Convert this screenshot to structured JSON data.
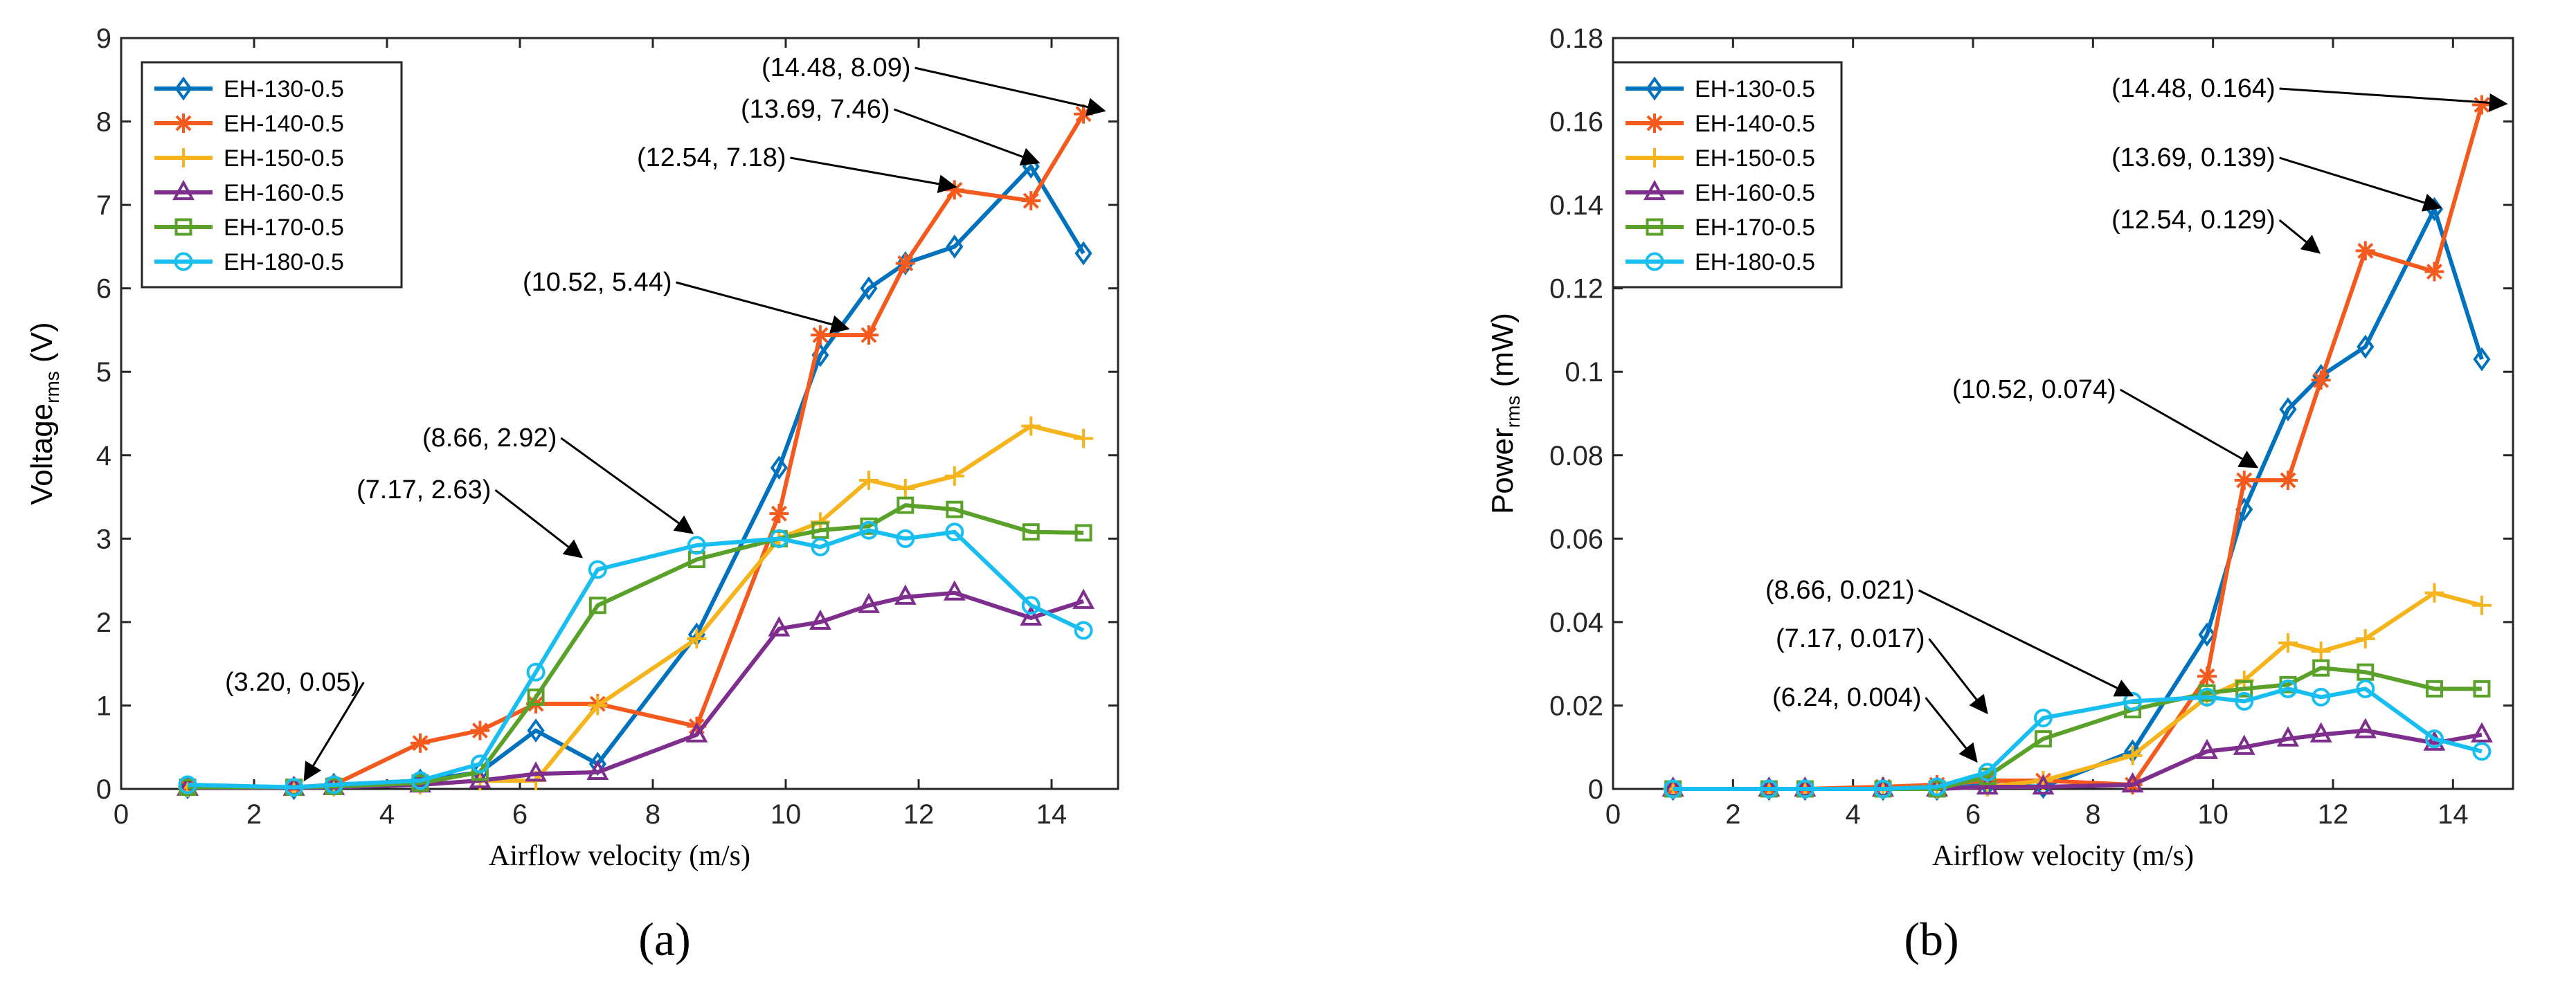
{
  "chart_data": [
    {
      "type": "line",
      "panel_label": "(a)",
      "xlabel": "Airflow velocity (m/s)",
      "ylabel_main": "Voltage",
      "ylabel_sub": "rms",
      "ylabel_unit": " (V)",
      "xlim": [
        0,
        15
      ],
      "ylim": [
        0,
        9
      ],
      "xticks": [
        0,
        2,
        4,
        6,
        8,
        10,
        12,
        14
      ],
      "yticks": [
        0,
        1,
        2,
        3,
        4,
        5,
        6,
        7,
        8,
        9
      ],
      "xtick_labels": [
        "0",
        "2",
        "4",
        "6",
        "8",
        "10",
        "12",
        "14"
      ],
      "ytick_labels": [
        "0",
        "1",
        "2",
        "3",
        "4",
        "5",
        "6",
        "7",
        "8",
        "9"
      ],
      "legend_position": "top-left",
      "grid": false,
      "x": [
        1.0,
        2.6,
        3.2,
        4.5,
        5.4,
        6.24,
        7.17,
        8.66,
        9.9,
        10.52,
        11.25,
        11.8,
        12.54,
        13.69,
        14.48
      ],
      "series": [
        {
          "name": "EH-130-0.5",
          "values": [
            0.02,
            0.01,
            0.05,
            0.1,
            0.2,
            0.7,
            0.3,
            1.85,
            3.85,
            5.2,
            6.0,
            6.3,
            6.5,
            7.46,
            6.42
          ]
        },
        {
          "name": "EH-140-0.5",
          "values": [
            0.02,
            0.02,
            0.05,
            0.55,
            0.7,
            1.02,
            1.02,
            0.75,
            3.3,
            5.44,
            5.44,
            6.3,
            7.18,
            7.05,
            8.09
          ]
        },
        {
          "name": "EH-150-0.5",
          "values": [
            0.02,
            0.02,
            0.03,
            0.05,
            0.1,
            0.1,
            1.0,
            1.8,
            3.0,
            3.2,
            3.7,
            3.6,
            3.75,
            4.35,
            4.2
          ]
        },
        {
          "name": "EH-160-0.5",
          "values": [
            0.01,
            0.01,
            0.02,
            0.05,
            0.1,
            0.18,
            0.2,
            0.65,
            1.92,
            2.0,
            2.2,
            2.3,
            2.35,
            2.05,
            2.25
          ]
        },
        {
          "name": "EH-170-0.5",
          "values": [
            0.02,
            0.02,
            0.03,
            0.07,
            0.2,
            1.1,
            2.2,
            2.75,
            3.0,
            3.1,
            3.15,
            3.4,
            3.35,
            3.08,
            3.07
          ]
        },
        {
          "name": "EH-180-0.5",
          "values": [
            0.05,
            0.02,
            0.05,
            0.1,
            0.3,
            1.4,
            2.63,
            2.92,
            3.0,
            2.9,
            3.1,
            3.0,
            3.08,
            2.2,
            1.9
          ]
        }
      ],
      "annotations": [
        {
          "text": "(14.48, 8.09)",
          "x": 14.48,
          "y": 8.09
        },
        {
          "text": "(13.69, 7.46)",
          "x": 13.69,
          "y": 7.46
        },
        {
          "text": "(12.54, 7.18)",
          "x": 12.54,
          "y": 7.18
        },
        {
          "text": "(10.52, 5.44)",
          "x": 10.52,
          "y": 5.44
        },
        {
          "text": "(8.66, 2.92)",
          "x": 8.66,
          "y": 2.92
        },
        {
          "text": "(7.17, 2.63)",
          "x": 7.17,
          "y": 2.63
        },
        {
          "text": "(3.20, 0.05)",
          "x": 3.2,
          "y": 0.05
        }
      ]
    },
    {
      "type": "line",
      "panel_label": "(b)",
      "xlabel": "Airflow velocity (m/s)",
      "ylabel_main": "Power",
      "ylabel_sub": "rms",
      "ylabel_unit": " (mW)",
      "xlim": [
        0,
        15
      ],
      "ylim": [
        0,
        0.18
      ],
      "xticks": [
        0,
        2,
        4,
        6,
        8,
        10,
        12,
        14
      ],
      "yticks": [
        0,
        0.02,
        0.04,
        0.06,
        0.08,
        0.1,
        0.12,
        0.14,
        0.16,
        0.18
      ],
      "xtick_labels": [
        "0",
        "2",
        "4",
        "6",
        "8",
        "10",
        "12",
        "14"
      ],
      "ytick_labels": [
        "0",
        "0.02",
        "0.04",
        "0.06",
        "0.08",
        "0.1",
        "0.12",
        "0.14",
        "0.16",
        "0.18"
      ],
      "legend_position": "top-left",
      "grid": false,
      "x": [
        1.0,
        2.6,
        3.2,
        4.5,
        5.4,
        6.24,
        7.17,
        8.66,
        9.9,
        10.52,
        11.25,
        11.8,
        12.54,
        13.69,
        14.48
      ],
      "series": [
        {
          "name": "EH-130-0.5",
          "values": [
            0.0,
            0.0,
            0.0,
            0.0,
            0.0,
            0.001,
            0.0005,
            0.009,
            0.037,
            0.067,
            0.091,
            0.099,
            0.106,
            0.139,
            0.103
          ]
        },
        {
          "name": "EH-140-0.5",
          "values": [
            0.0,
            0.0,
            0.0,
            0.0005,
            0.001,
            0.002,
            0.002,
            0.001,
            0.027,
            0.074,
            0.074,
            0.098,
            0.129,
            0.124,
            0.164
          ]
        },
        {
          "name": "EH-150-0.5",
          "values": [
            0.0,
            0.0,
            0.0,
            0.0,
            0.0,
            0.0005,
            0.002,
            0.008,
            0.022,
            0.026,
            0.035,
            0.033,
            0.036,
            0.047,
            0.044
          ]
        },
        {
          "name": "EH-160-0.5",
          "values": [
            0.0,
            0.0,
            0.0,
            0.0,
            0.0,
            0.0005,
            0.0005,
            0.001,
            0.009,
            0.01,
            0.012,
            0.013,
            0.014,
            0.011,
            0.013
          ]
        },
        {
          "name": "EH-170-0.5",
          "values": [
            0.0,
            0.0,
            0.0,
            0.0,
            0.0,
            0.003,
            0.012,
            0.019,
            0.023,
            0.024,
            0.025,
            0.029,
            0.028,
            0.024,
            0.024
          ]
        },
        {
          "name": "EH-180-0.5",
          "values": [
            0.0,
            0.0,
            0.0,
            0.0,
            0.0005,
            0.004,
            0.017,
            0.021,
            0.022,
            0.021,
            0.024,
            0.022,
            0.024,
            0.012,
            0.009
          ]
        }
      ],
      "annotations": [
        {
          "text": "(14.48, 0.164)",
          "x": 14.48,
          "y": 0.164
        },
        {
          "text": "(13.69, 0.139)",
          "x": 13.69,
          "y": 0.139
        },
        {
          "text": "(12.54, 0.129)",
          "x": 12.54,
          "y": 0.129
        },
        {
          "text": "(10.52, 0.074)",
          "x": 10.52,
          "y": 0.074
        },
        {
          "text": "(8.66, 0.021)",
          "x": 8.66,
          "y": 0.021
        },
        {
          "text": "(7.17, 0.017)",
          "x": 7.17,
          "y": 0.017
        },
        {
          "text": "(6.24, 0.004)",
          "x": 6.24,
          "y": 0.004
        }
      ]
    }
  ],
  "series_colors": [
    "#0072BD",
    "#F45A1E",
    "#F5B41C",
    "#7E2F8E",
    "#5AA12A",
    "#17BEEF"
  ],
  "series_markers": [
    "diamond",
    "asterisk",
    "plus",
    "triangle",
    "square",
    "circle"
  ]
}
